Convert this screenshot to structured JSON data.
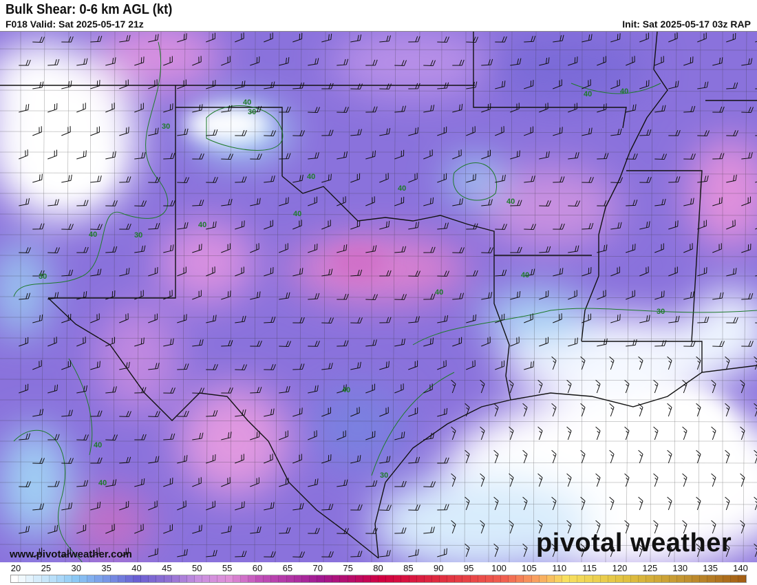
{
  "header": {
    "title": "Bulk Shear: 0-6 km AGL (kt)",
    "valid": "F018 Valid: Sat 2025-05-17 21z",
    "init": "Init: Sat 2025-05-17 03z RAP"
  },
  "footer": {
    "website": "www.pivotalweather.com",
    "brand": "pivotal weather"
  },
  "colorbar": {
    "min": 20,
    "max": 140,
    "step": 5,
    "labels": [
      "20",
      "25",
      "30",
      "35",
      "40",
      "45",
      "50",
      "55",
      "60",
      "65",
      "70",
      "75",
      "80",
      "85",
      "90",
      "95",
      "100",
      "105",
      "110",
      "115",
      "120",
      "125",
      "130",
      "135",
      "140"
    ],
    "color_stops": {
      "20": "#ffffff",
      "25": "#c8e6fa",
      "30": "#8cc8f5",
      "35": "#7896e6",
      "40": "#6a5fd2",
      "45": "#9070d2",
      "50": "#c890e0",
      "55": "#e090d8",
      "60": "#c050b8",
      "70": "#a01890",
      "80": "#d00040",
      "90": "#e03040",
      "100": "#f06050",
      "105": "#f8a060",
      "110": "#f8e060",
      "120": "#e0c040",
      "130": "#c09030",
      "140": "#a05810"
    }
  },
  "contour_labels": [
    "40",
    "30",
    "30",
    "40",
    "40",
    "40",
    "30",
    "40",
    "30",
    "40",
    "40",
    "40",
    "40",
    "40",
    "40",
    "30",
    "40",
    "40",
    "30",
    "40"
  ],
  "colors": {
    "contour": "#1e7a2a",
    "border": "#111111"
  }
}
